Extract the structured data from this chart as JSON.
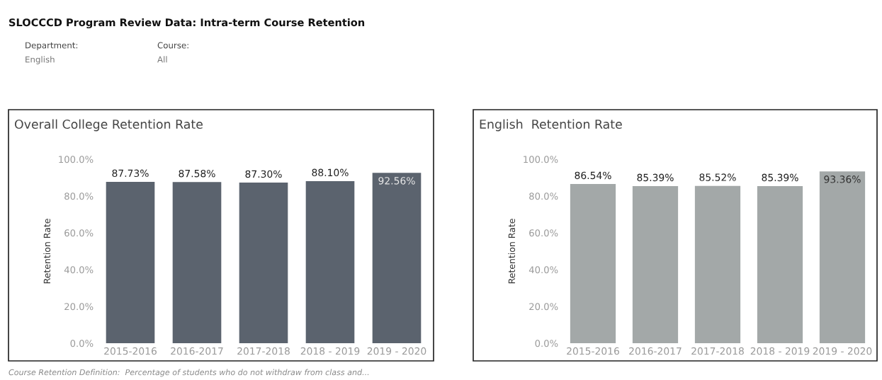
{
  "chart_data": [
    {
      "type": "other",
      "title": "SLOCCCD Program Review Data: Intra-term Course Retention",
      "annotations": [
        "Department:",
        "English",
        "Course:",
        "All",
        "Course Retention Definition:  Percentage of students who do not withdraw from class and..."
      ]
    },
    {
      "type": "bar",
      "title": "Overall College Retention Rate",
      "ylabel": "Retention Rate",
      "categories": [
        "2015-2016",
        "2016-2017",
        "2017-2018",
        "2018 - 2019",
        "2019 - 2020"
      ],
      "values": [
        87.73,
        87.58,
        87.3,
        88.1,
        92.56
      ],
      "value_labels": [
        "87.73%",
        "87.58%",
        "87.30%",
        "88.10%",
        "92.56%"
      ],
      "color": "#5b636e",
      "ylim": [
        0,
        100
      ],
      "yticks": [
        {
          "value": 0,
          "label": "0.0%"
        },
        {
          "value": 20,
          "label": "20.0%"
        },
        {
          "value": 40,
          "label": "40.0%"
        },
        {
          "value": 60,
          "label": "60.0%"
        },
        {
          "value": 80,
          "label": "80.0%"
        },
        {
          "value": 100,
          "label": "100.0%"
        }
      ],
      "grid": false
    },
    {
      "type": "bar",
      "title": "English  Retention Rate",
      "ylabel": "Retention Rate",
      "categories": [
        "2015-2016",
        "2016-2017",
        "2017-2018",
        "2018 - 2019",
        "2019 - 2020"
      ],
      "values": [
        86.54,
        85.39,
        85.52,
        85.39,
        93.36
      ],
      "value_labels": [
        "86.54%",
        "85.39%",
        "85.52%",
        "85.39%",
        "93.36%"
      ],
      "color": "#a3a8a8",
      "ylim": [
        0,
        100
      ],
      "yticks": [
        {
          "value": 0,
          "label": "0.0%"
        },
        {
          "value": 20,
          "label": "20.0%"
        },
        {
          "value": 40,
          "label": "40.0%"
        },
        {
          "value": 60,
          "label": "60.0%"
        },
        {
          "value": 80,
          "label": "80.0%"
        },
        {
          "value": 100,
          "label": "100.0%"
        }
      ],
      "grid": false
    }
  ]
}
